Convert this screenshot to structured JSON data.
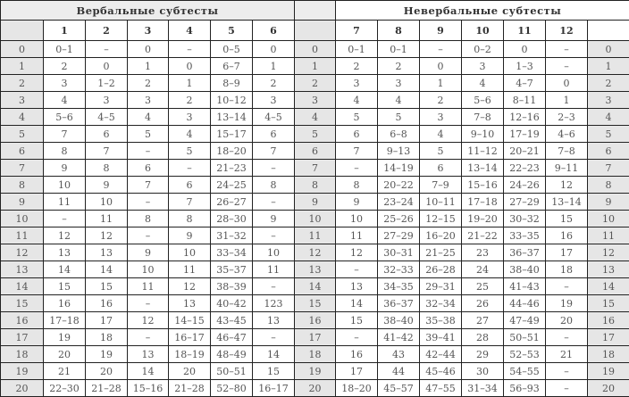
{
  "titles": {
    "verbal": "Вербальные субтесты",
    "nonverbal": "Невербальные субтесты"
  },
  "verbal_columns": [
    "1",
    "2",
    "3",
    "4",
    "5",
    "6"
  ],
  "nonverbal_columns": [
    "7",
    "8",
    "9",
    "10",
    "11",
    "12"
  ],
  "rows": [
    {
      "score": "0",
      "verbal": [
        "0–1",
        "–",
        "0",
        "–",
        "0–5",
        "0"
      ],
      "nonverbal": [
        "0–1",
        "0–1",
        "–",
        "0–2",
        "0",
        "–"
      ]
    },
    {
      "score": "1",
      "verbal": [
        "2",
        "0",
        "1",
        "0",
        "6–7",
        "1"
      ],
      "nonverbal": [
        "2",
        "2",
        "0",
        "3",
        "1–3",
        "–"
      ]
    },
    {
      "score": "2",
      "verbal": [
        "3",
        "1–2",
        "2",
        "1",
        "8–9",
        "2"
      ],
      "nonverbal": [
        "3",
        "3",
        "1",
        "4",
        "4–7",
        "0"
      ]
    },
    {
      "score": "3",
      "verbal": [
        "4",
        "3",
        "3",
        "2",
        "10–12",
        "3"
      ],
      "nonverbal": [
        "4",
        "4",
        "2",
        "5–6",
        "8–11",
        "1"
      ]
    },
    {
      "score": "4",
      "verbal": [
        "5–6",
        "4–5",
        "4",
        "3",
        "13–14",
        "4–5"
      ],
      "nonverbal": [
        "5",
        "5",
        "3",
        "7–8",
        "12–16",
        "2–3"
      ]
    },
    {
      "score": "5",
      "verbal": [
        "7",
        "6",
        "5",
        "4",
        "15–17",
        "6"
      ],
      "nonverbal": [
        "6",
        "6–8",
        "4",
        "9–10",
        "17–19",
        "4–6"
      ]
    },
    {
      "score": "6",
      "verbal": [
        "8",
        "7",
        "–",
        "5",
        "18–20",
        "7"
      ],
      "nonverbal": [
        "7",
        "9–13",
        "5",
        "11–12",
        "20–21",
        "7–8"
      ]
    },
    {
      "score": "7",
      "verbal": [
        "9",
        "8",
        "6",
        "–",
        "21–23",
        "–"
      ],
      "nonverbal": [
        "–",
        "14–19",
        "6",
        "13–14",
        "22–23",
        "9–11"
      ]
    },
    {
      "score": "8",
      "verbal": [
        "10",
        "9",
        "7",
        "6",
        "24–25",
        "8"
      ],
      "nonverbal": [
        "8",
        "20–22",
        "7–9",
        "15–16",
        "24–26",
        "12"
      ]
    },
    {
      "score": "9",
      "verbal": [
        "11",
        "10",
        "–",
        "7",
        "26–27",
        "–"
      ],
      "nonverbal": [
        "9",
        "23–24",
        "10–11",
        "17–18",
        "27–29",
        "13–14"
      ]
    },
    {
      "score": "10",
      "verbal": [
        "–",
        "11",
        "8",
        "8",
        "28–30",
        "9"
      ],
      "nonverbal": [
        "10",
        "25–26",
        "12–15",
        "19–20",
        "30–32",
        "15"
      ]
    },
    {
      "score": "11",
      "verbal": [
        "12",
        "12",
        "–",
        "9",
        "31–32",
        "–"
      ],
      "nonverbal": [
        "11",
        "27–29",
        "16–20",
        "21–22",
        "33–35",
        "16"
      ]
    },
    {
      "score": "12",
      "verbal": [
        "13",
        "13",
        "9",
        "10",
        "33–34",
        "10"
      ],
      "nonverbal": [
        "12",
        "30–31",
        "21–25",
        "23",
        "36–37",
        "17"
      ]
    },
    {
      "score": "13",
      "verbal": [
        "14",
        "14",
        "10",
        "11",
        "35–37",
        "11"
      ],
      "nonverbal": [
        "–",
        "32–33",
        "26–28",
        "24",
        "38–40",
        "18"
      ]
    },
    {
      "score": "14",
      "verbal": [
        "15",
        "15",
        "11",
        "12",
        "38–39",
        "–"
      ],
      "nonverbal": [
        "13",
        "34–35",
        "29–31",
        "25",
        "41–43",
        "–"
      ]
    },
    {
      "score": "15",
      "verbal": [
        "16",
        "16",
        "–",
        "13",
        "40–42",
        "123"
      ],
      "nonverbal": [
        "14",
        "36–37",
        "32–34",
        "26",
        "44–46",
        "19"
      ]
    },
    {
      "score": "16",
      "verbal": [
        "17–18",
        "17",
        "12",
        "14–15",
        "43–45",
        "13"
      ],
      "nonverbal": [
        "15",
        "38–40",
        "35–38",
        "27",
        "47–49",
        "20"
      ]
    },
    {
      "score": "17",
      "verbal": [
        "19",
        "18",
        "–",
        "16–17",
        "46–47",
        "–"
      ],
      "nonverbal": [
        "–",
        "41–42",
        "39–41",
        "28",
        "50–51",
        "–"
      ]
    },
    {
      "score": "18",
      "verbal": [
        "20",
        "19",
        "13",
        "18–19",
        "48–49",
        "14"
      ],
      "nonverbal": [
        "16",
        "43",
        "42–44",
        "29",
        "52–53",
        "21"
      ]
    },
    {
      "score": "19",
      "verbal": [
        "21",
        "20",
        "14",
        "20",
        "50–51",
        "15"
      ],
      "nonverbal": [
        "17",
        "44",
        "45–46",
        "30",
        "54–55",
        "–"
      ]
    },
    {
      "score": "20",
      "verbal": [
        "22–30",
        "21–28",
        "15–16",
        "21–28",
        "52–80",
        "16–17"
      ],
      "nonverbal": [
        "18–20",
        "45–57",
        "47–55",
        "31–34",
        "56–93",
        "–"
      ]
    }
  ]
}
